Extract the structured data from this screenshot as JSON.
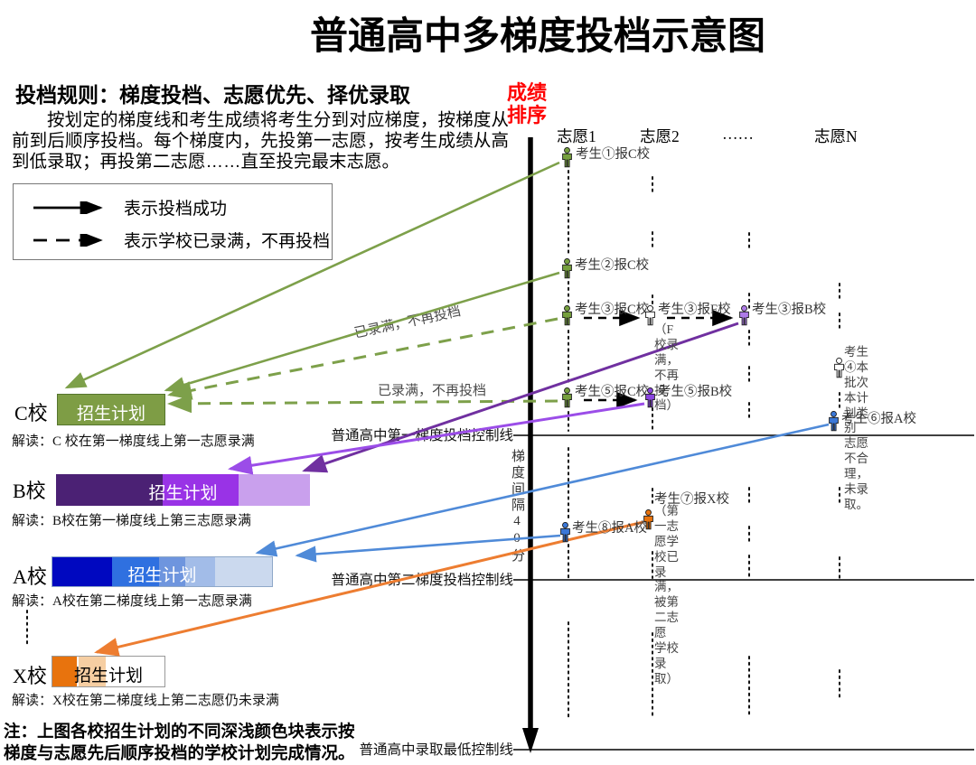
{
  "title": "普通高中多梯度投档示意图",
  "rules": {
    "heading": "投档规则：梯度投档、志愿优先、择优录取",
    "body": "按划定的梯度线和考生成绩将考生分到对应梯度，按梯度从前到后顺序投档。每个梯度内，先投第一志愿，按考生成绩从高到低录取；再投第二志愿……直至投完最末志愿。"
  },
  "legend": {
    "solid": "表示投档成功",
    "dashed": "表示学校已录满，不再投档"
  },
  "axis": {
    "score_label": "成绩\n排序",
    "gap_label": "梯度间隔40分"
  },
  "columns": [
    "志愿1",
    "志愿2",
    "……",
    "志愿N"
  ],
  "control_lines": [
    "普通高中第一梯度投档控制线",
    "普通高中第二梯度投档控制线",
    "普通高中录取最低控制线"
  ],
  "flow_labels": {
    "full1": "已录满，不再投档",
    "full2": "已录满，不再投档"
  },
  "schools": [
    {
      "name": "C校",
      "plan_label": "招生计划",
      "jiedu": "解读：C 校在第一梯度线上第一志愿录满",
      "segments": [
        "#7E9D45"
      ]
    },
    {
      "name": "B校",
      "plan_label": "招生计划",
      "jiedu": "解读：B校在第一梯度线上第三志愿录满",
      "segments": [
        "#4B2174",
        "#9933E6",
        "#C9A0ED"
      ]
    },
    {
      "name": "A校",
      "plan_label": "招生计划",
      "jiedu": "解读：A校在第二梯度线上第一志愿录满",
      "segments": [
        "#0008C0",
        "#2F70E0",
        "#6E95DE",
        "#A2BCE8",
        "#CBD9EE"
      ]
    },
    {
      "name": "X校",
      "plan_label": "招生计划",
      "jiedu": "解读：X校在第二梯度线上第二志愿仍未录满",
      "segments": [
        "#E8730D",
        "#F6CEA2",
        "#FFFFFF"
      ]
    }
  ],
  "students": [
    {
      "id": "s1",
      "label": "考生①报C校",
      "color": "#76A03E"
    },
    {
      "id": "s2",
      "label": "考生②报C校",
      "color": "#76A03E"
    },
    {
      "id": "s3c",
      "label": "考生③报C校",
      "color": "#76A03E"
    },
    {
      "id": "s3f",
      "label": "考生③报F校",
      "color": "#FFFFFF",
      "note": "（F校录满，\n不再投档）"
    },
    {
      "id": "s3b",
      "label": "考生③报B校",
      "color": "#AE7BE8"
    },
    {
      "id": "s4",
      "label": "",
      "color": "#FFFFFF",
      "note": "考生④本批次本计划类别\n志愿不合理，未录取。"
    },
    {
      "id": "s5c",
      "label": "考生⑤报C校",
      "color": "#76A03E"
    },
    {
      "id": "s5b",
      "label": "考生⑤报B校",
      "color": "#8A45E0"
    },
    {
      "id": "s6",
      "label": "考生⑥报A校",
      "color": "#3B78D8"
    },
    {
      "id": "s7",
      "label": "考生⑦报X校",
      "color": "#E8730D",
      "note": "（第一志愿学\n校已录满，\n被第二志愿\n学校录取）"
    },
    {
      "id": "s8",
      "label": "考生⑧报A校",
      "color": "#3B78D8"
    }
  ],
  "footnote": "注：上图各校招生计划的不同深浅颜色块表示按\n梯度与志愿先后顺序投档的学校计划完成情况。",
  "colors": {
    "success_green": "#7DA04A",
    "purple_dark": "#7030A0",
    "violet": "#9B4DE8",
    "blue": "#4F8AD8",
    "orange": "#ED7D31",
    "score_red": "#FF0000"
  }
}
